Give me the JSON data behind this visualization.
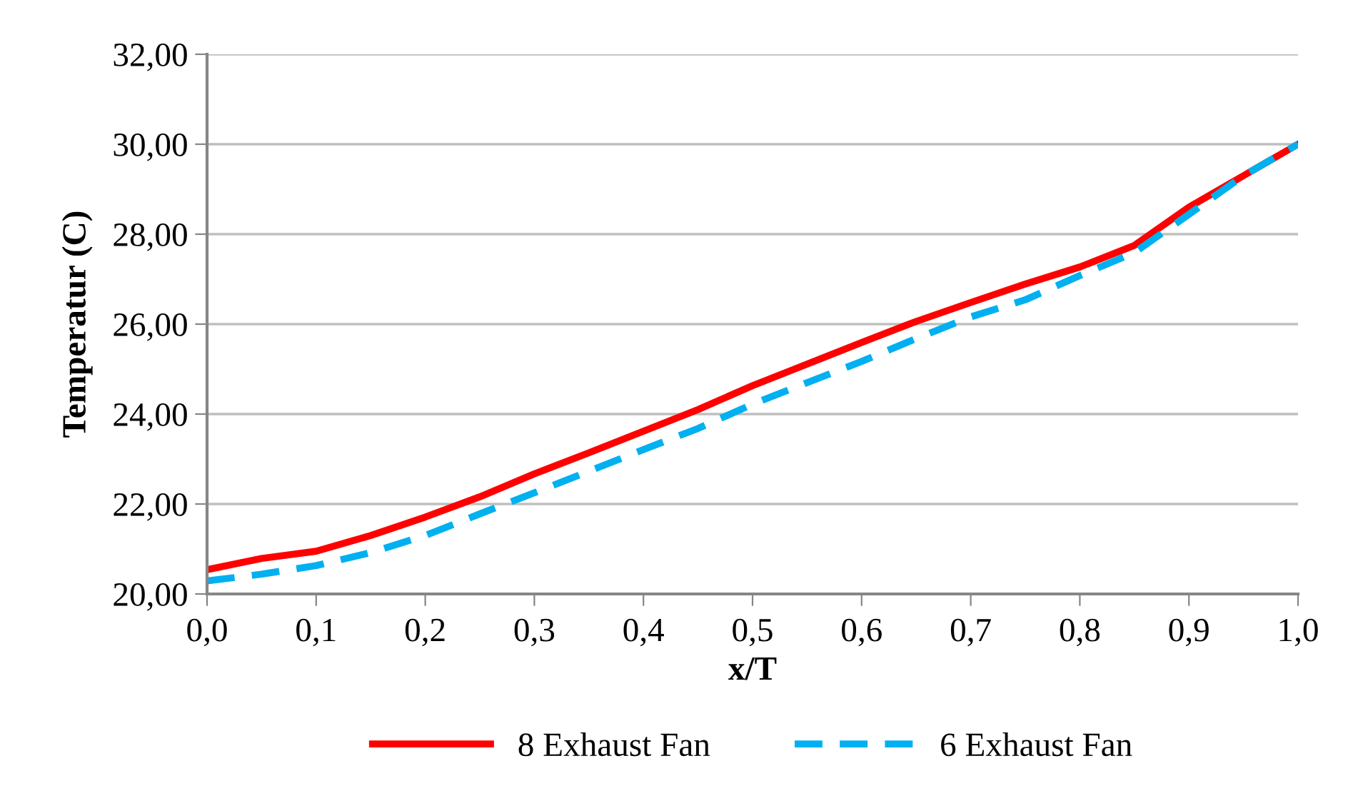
{
  "chart_data": {
    "type": "line",
    "xlabel": "x/T",
    "ylabel": "Temperatur (C)",
    "x": [
      0,
      0.05,
      0.1,
      0.15,
      0.2,
      0.25,
      0.3,
      0.35,
      0.4,
      0.45,
      0.5,
      0.55,
      0.6,
      0.65,
      0.7,
      0.75,
      0.8,
      0.85,
      0.9,
      0.95,
      1.0
    ],
    "series": [
      {
        "name": "8 Exhaust Fan",
        "color": "#ff0000",
        "line_style": "solid",
        "values": [
          20.54,
          20.79,
          20.95,
          21.3,
          21.71,
          22.16,
          22.67,
          23.14,
          23.62,
          24.1,
          24.63,
          25.11,
          25.59,
          26.06,
          26.48,
          26.89,
          27.27,
          27.75,
          28.6,
          29.3,
          30.0
        ]
      },
      {
        "name": "6 Exhaust Fan",
        "color": "#00b0f0",
        "line_style": "dashed",
        "values": [
          20.29,
          20.44,
          20.63,
          20.92,
          21.3,
          21.78,
          22.25,
          22.73,
          23.21,
          23.68,
          24.22,
          24.7,
          25.17,
          25.68,
          26.16,
          26.54,
          27.08,
          27.59,
          28.44,
          29.3,
          30.0
        ]
      }
    ],
    "xlim": [
      0,
      1.0
    ],
    "xticks": [
      {
        "value": 0,
        "label": "0,0"
      },
      {
        "value": 0.1,
        "label": "0,1"
      },
      {
        "value": 0.2,
        "label": "0,2"
      },
      {
        "value": 0.3,
        "label": "0,3"
      },
      {
        "value": 0.4,
        "label": "0,4"
      },
      {
        "value": 0.5,
        "label": "0,5"
      },
      {
        "value": 0.6,
        "label": "0,6"
      },
      {
        "value": 0.7,
        "label": "0,7"
      },
      {
        "value": 0.8,
        "label": "0,8"
      },
      {
        "value": 0.9,
        "label": "0,9"
      },
      {
        "value": 1.0,
        "label": "1,0"
      }
    ],
    "ylim": [
      20,
      32
    ],
    "yticks": [
      {
        "value": 20,
        "label": "20,00"
      },
      {
        "value": 22,
        "label": "22,00"
      },
      {
        "value": 24,
        "label": "24,00"
      },
      {
        "value": 26,
        "label": "26,00"
      },
      {
        "value": 28,
        "label": "28,00"
      },
      {
        "value": 30,
        "label": "30,00"
      },
      {
        "value": 32,
        "label": "32,00"
      }
    ],
    "grid": "y",
    "legend": "bottom",
    "marker": "none"
  }
}
